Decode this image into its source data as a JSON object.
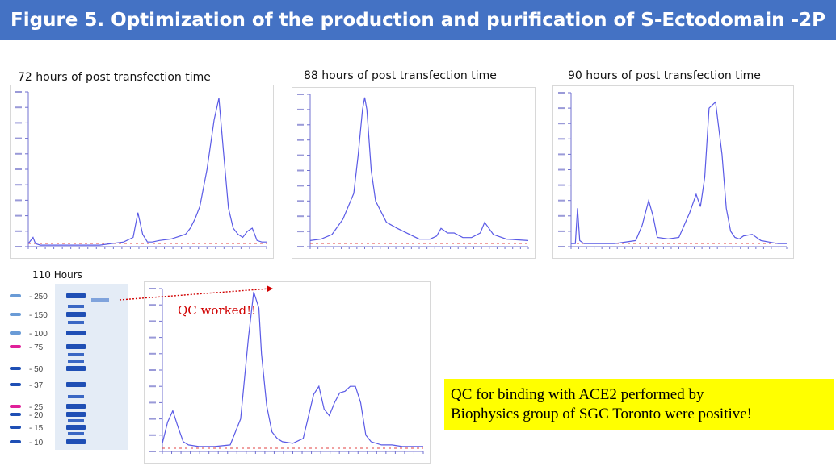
{
  "header": {
    "title": "Figure 5. Optimization of the production and purification of S-Ectodomain -2P"
  },
  "captions": {
    "p72": "72 hours of post transfection time",
    "p88": "88 hours of  post transfection time",
    "p90": "90 hours of post transfection time",
    "gel": "110  Hours"
  },
  "gel": {
    "markers": [
      "250",
      "150",
      "100",
      "75",
      "50",
      "37",
      "25",
      "20",
      "15",
      "10"
    ]
  },
  "annotation": {
    "qc": "QC worked!!"
  },
  "note": {
    "line1": "QC for binding  with ACE2 performed by",
    "line2": "Biophysics group  of SGC Toronto  were positive!"
  },
  "colors": {
    "header": "#4472c4",
    "trace": "#5a5ae6",
    "note_bg": "#ffff00",
    "annotation": "#d00000",
    "gel_band": "#1f4fb5"
  },
  "chart_data": [
    {
      "type": "line",
      "title": "72 hours of post transfection time",
      "ylim": [
        0,
        100
      ],
      "x": [
        0,
        2,
        3,
        5,
        10,
        20,
        30,
        40,
        44,
        46,
        48,
        50,
        52,
        55,
        60,
        66,
        68,
        70,
        72,
        75,
        78,
        80,
        82,
        84,
        86,
        88,
        90,
        92,
        94,
        95,
        96,
        98,
        100
      ],
      "y": [
        2,
        6,
        2,
        1,
        1,
        1,
        1,
        3,
        6,
        22,
        8,
        3,
        3,
        4,
        5,
        8,
        12,
        18,
        26,
        50,
        82,
        96,
        60,
        25,
        12,
        8,
        6,
        10,
        12,
        8,
        4,
        3,
        3
      ]
    },
    {
      "type": "line",
      "title": "88 hours of  post transfection time",
      "ylim": [
        0,
        100
      ],
      "x": [
        0,
        5,
        10,
        15,
        20,
        22,
        24,
        25,
        26,
        28,
        30,
        35,
        40,
        50,
        55,
        58,
        60,
        63,
        66,
        70,
        74,
        78,
        80,
        84,
        90,
        100
      ],
      "y": [
        4,
        5,
        8,
        18,
        35,
        60,
        90,
        98,
        90,
        50,
        30,
        16,
        12,
        5,
        5,
        7,
        12,
        9,
        9,
        6,
        6,
        9,
        16,
        8,
        5,
        4
      ]
    },
    {
      "type": "line",
      "title": "90 hours of post transfection time",
      "ylim": [
        0,
        100
      ],
      "x": [
        0,
        2,
        3,
        4,
        6,
        10,
        20,
        30,
        33,
        36,
        38,
        40,
        45,
        50,
        55,
        58,
        60,
        62,
        64,
        67,
        70,
        72,
        74,
        76,
        78,
        80,
        84,
        88,
        92,
        96,
        100
      ],
      "y": [
        2,
        2,
        25,
        4,
        2,
        2,
        2,
        4,
        14,
        30,
        20,
        6,
        5,
        6,
        22,
        34,
        26,
        45,
        90,
        94,
        60,
        25,
        10,
        6,
        5,
        7,
        8,
        4,
        3,
        2,
        2
      ]
    },
    {
      "type": "line",
      "title": "",
      "ylim": [
        0,
        100
      ],
      "x": [
        0,
        2,
        4,
        6,
        8,
        10,
        14,
        20,
        26,
        30,
        33,
        35,
        37,
        38,
        40,
        42,
        44,
        46,
        50,
        54,
        58,
        60,
        62,
        64,
        66,
        68,
        70,
        72,
        74,
        76,
        78,
        80,
        84,
        88,
        92,
        96,
        100
      ],
      "y": [
        5,
        18,
        25,
        15,
        6,
        4,
        3,
        3,
        4,
        20,
        70,
        98,
        88,
        60,
        28,
        12,
        8,
        6,
        5,
        8,
        35,
        40,
        26,
        22,
        30,
        36,
        37,
        40,
        40,
        30,
        10,
        6,
        4,
        4,
        3,
        3,
        3
      ]
    }
  ]
}
